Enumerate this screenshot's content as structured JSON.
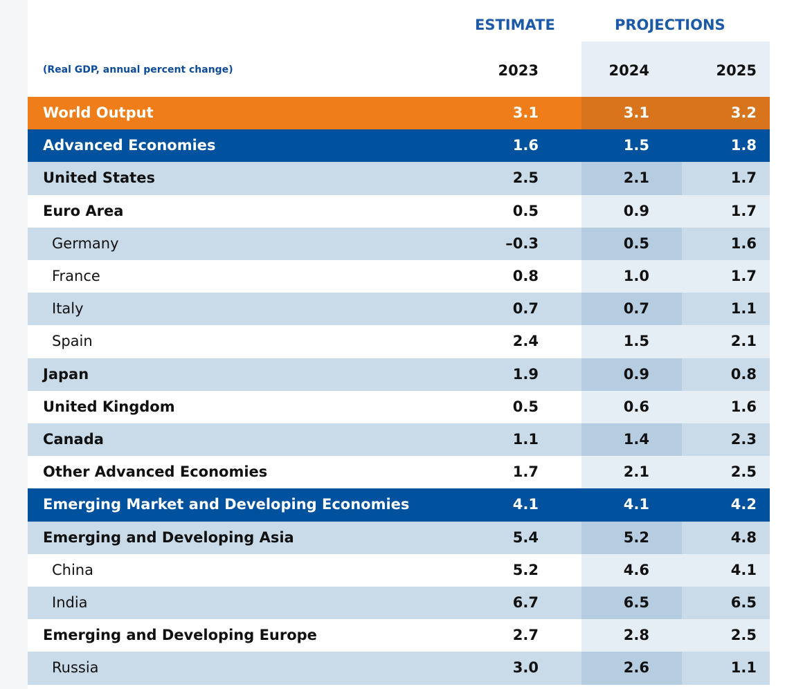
{
  "header": {
    "estimate": "ESTIMATE",
    "projections": "PROJECTIONS",
    "subtitle": "(Real GDP, annual percent change)",
    "years": [
      "2023",
      "2024",
      "2025"
    ]
  },
  "table": {
    "rows": [
      [
        "World Output",
        "3.1",
        "3.1",
        "3.2"
      ],
      [
        "Advanced Economies",
        "1.6",
        "1.5",
        "1.8"
      ],
      [
        "United States",
        "2.5",
        "2.1",
        "1.7"
      ],
      [
        "Euro Area",
        "0.5",
        "0.9",
        "1.7"
      ],
      [
        "Germany",
        "–0.3",
        "0.5",
        "1.6"
      ],
      [
        "France",
        "0.8",
        "1.0",
        "1.7"
      ],
      [
        "Italy",
        "0.7",
        "0.7",
        "1.1"
      ],
      [
        "Spain",
        "2.4",
        "1.5",
        "2.1"
      ],
      [
        "Japan",
        "1.9",
        "0.9",
        "0.8"
      ],
      [
        "United Kingdom",
        "0.5",
        "0.6",
        "1.6"
      ],
      [
        "Canada",
        "1.1",
        "1.4",
        "2.3"
      ],
      [
        "Other Advanced Economies",
        "1.7",
        "2.1",
        "2.5"
      ],
      [
        "Emerging Market and Developing Economies",
        "4.1",
        "4.1",
        "4.2"
      ],
      [
        "Emerging and Developing Asia",
        "5.4",
        "5.2",
        "4.8"
      ],
      [
        "China",
        "5.2",
        "4.6",
        "4.1"
      ],
      [
        "India",
        "6.7",
        "6.5",
        "6.5"
      ],
      [
        "Emerging and Developing Europe",
        "2.7",
        "2.8",
        "2.5"
      ],
      [
        "Russia",
        "3.0",
        "2.6",
        "1.1"
      ]
    ]
  }
}
